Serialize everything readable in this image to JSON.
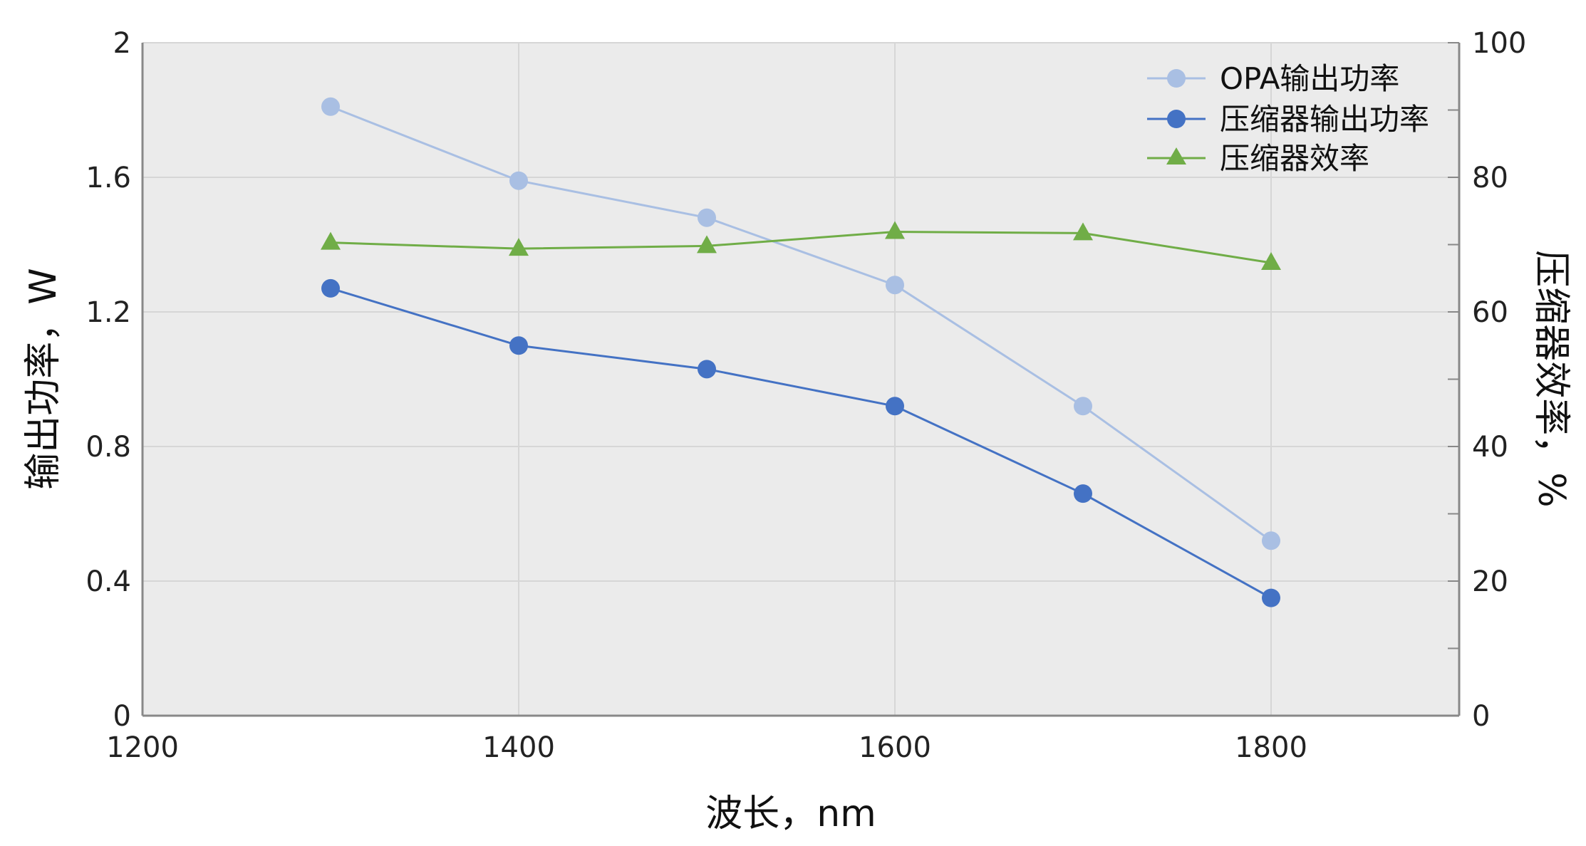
{
  "chart_data": {
    "type": "line",
    "xlabel": "波长，nm",
    "ylabel_left": "输出功率，W",
    "ylabel_right": "压缩器效率，%",
    "xlim": [
      1200,
      1900
    ],
    "ylim_left": [
      0,
      2
    ],
    "ylim_right": [
      0,
      100
    ],
    "xticks": [
      1200,
      1400,
      1600,
      1800
    ],
    "yticks_left": [
      "0",
      "0.4",
      "0.8",
      "1.2",
      "1.6",
      "2"
    ],
    "yticks_right": [
      "0",
      "20",
      "40",
      "60",
      "80",
      "100"
    ],
    "grid": true,
    "legend_position": "top-right",
    "series": [
      {
        "name": "OPA输出功率",
        "axis": "left",
        "marker": "circle",
        "color": "#a9bfe3",
        "x": [
          1300,
          1400,
          1500,
          1600,
          1700,
          1800
        ],
        "y": [
          1.81,
          1.59,
          1.48,
          1.28,
          0.92,
          0.52
        ]
      },
      {
        "name": "压缩器输出功率",
        "axis": "left",
        "marker": "circle",
        "color": "#4472c4",
        "x": [
          1300,
          1400,
          1500,
          1600,
          1700,
          1800
        ],
        "y": [
          1.27,
          1.1,
          1.03,
          0.92,
          0.66,
          0.35
        ]
      },
      {
        "name": "压缩器效率",
        "axis": "right",
        "marker": "triangle",
        "color": "#70ad47",
        "x": [
          1300,
          1400,
          1500,
          1600,
          1700,
          1800
        ],
        "y": [
          70.3,
          69.4,
          69.8,
          71.9,
          71.7,
          67.3
        ]
      }
    ]
  }
}
